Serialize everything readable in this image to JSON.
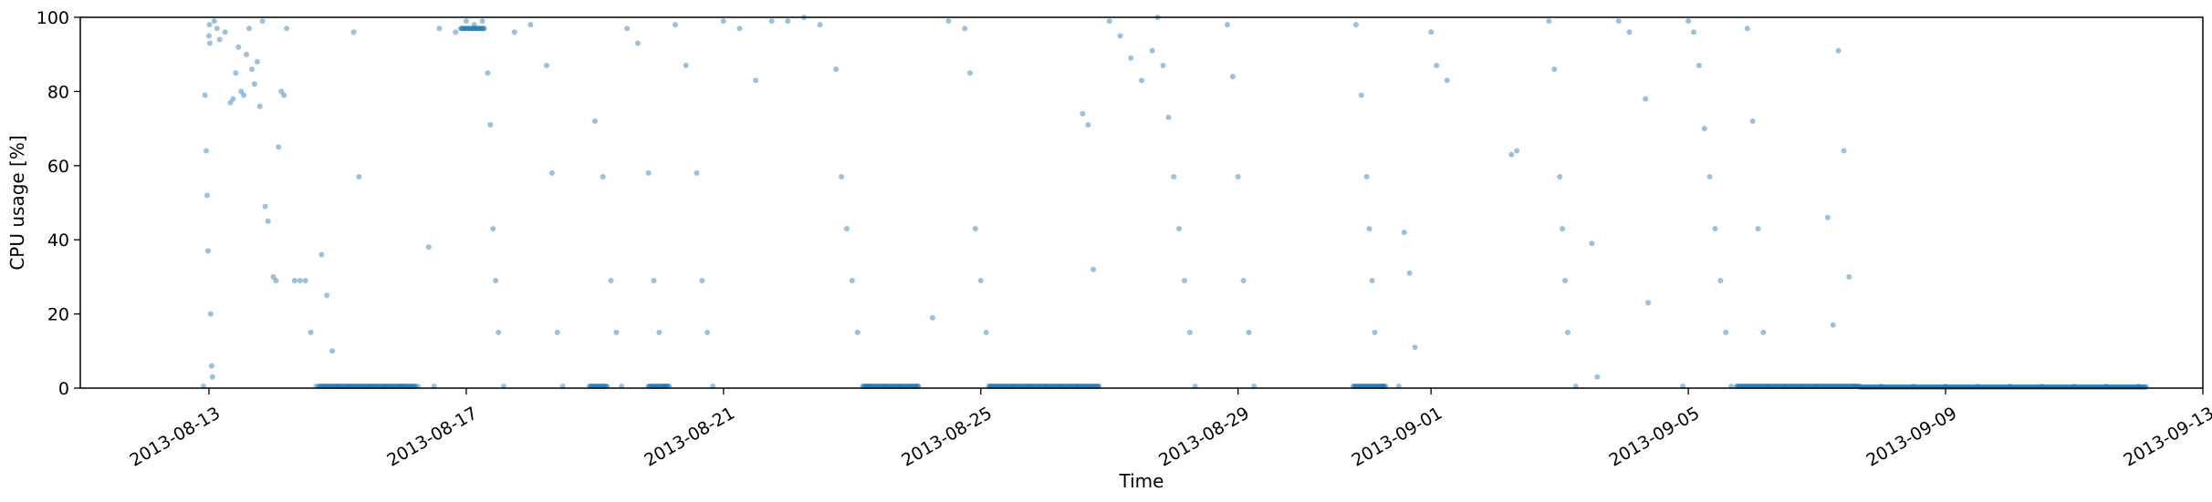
{
  "chart_data": {
    "type": "scatter",
    "title": "",
    "xlabel": "Time",
    "ylabel": "CPU usage [%]",
    "xlim": [
      "2013-08-11T00:00",
      "2013-09-13T00:00"
    ],
    "ylim": [
      0,
      100
    ],
    "grid": false,
    "legend": "none",
    "x_tick_labels": [
      "2013-08-13",
      "2013-08-17",
      "2013-08-21",
      "2013-08-25",
      "2013-08-29",
      "2013-09-01",
      "2013-09-05",
      "2013-09-09",
      "2013-09-13"
    ],
    "y_tick_labels": [
      "0",
      "20",
      "40",
      "60",
      "80",
      "100"
    ],
    "colors": {
      "point": "#1f77b4",
      "axes": "#000000"
    },
    "series": [
      {
        "columns": [
          "time",
          "cpu_percent"
        ],
        "points": [
          [
            "2013-08-12T22:00",
            0.5
          ],
          [
            "2013-08-12T22:30",
            79
          ],
          [
            "2013-08-12T23:00",
            64
          ],
          [
            "2013-08-12T23:20",
            52
          ],
          [
            "2013-08-12T23:40",
            37
          ],
          [
            "2013-08-13T00:00",
            95
          ],
          [
            "2013-08-13T00:10",
            98
          ],
          [
            "2013-08-13T00:20",
            93
          ],
          [
            "2013-08-13T00:40",
            20
          ],
          [
            "2013-08-13T01:00",
            6
          ],
          [
            "2013-08-13T01:20",
            3
          ],
          [
            "2013-08-13T02:00",
            99
          ],
          [
            "2013-08-13T03:00",
            97
          ],
          [
            "2013-08-13T04:00",
            94
          ],
          [
            "2013-08-13T06:00",
            96
          ],
          [
            "2013-08-13T08:00",
            77
          ],
          [
            "2013-08-13T09:00",
            78
          ],
          [
            "2013-08-13T10:00",
            85
          ],
          [
            "2013-08-13T11:00",
            92
          ],
          [
            "2013-08-13T12:00",
            80
          ],
          [
            "2013-08-13T13:00",
            79
          ],
          [
            "2013-08-13T14:00",
            90
          ],
          [
            "2013-08-13T15:00",
            97
          ],
          [
            "2013-08-13T16:00",
            86
          ],
          [
            "2013-08-13T17:00",
            82
          ],
          [
            "2013-08-13T18:00",
            88
          ],
          [
            "2013-08-13T19:00",
            76
          ],
          [
            "2013-08-13T20:00",
            99
          ],
          [
            "2013-08-13T21:00",
            49
          ],
          [
            "2013-08-13T22:00",
            45
          ],
          [
            "2013-08-14T00:00",
            30
          ],
          [
            "2013-08-14T01:00",
            29
          ],
          [
            "2013-08-14T02:00",
            65
          ],
          [
            "2013-08-14T03:00",
            80
          ],
          [
            "2013-08-14T04:00",
            79
          ],
          [
            "2013-08-14T05:00",
            97
          ],
          [
            "2013-08-14T08:00",
            29
          ],
          [
            "2013-08-14T10:00",
            29
          ],
          [
            "2013-08-14T12:00",
            29
          ],
          [
            "2013-08-14T14:00",
            15
          ],
          [
            "2013-08-14T16:00",
            0.5
          ],
          [
            "2013-08-14T18:00",
            36
          ],
          [
            "2013-08-14T20:00",
            25
          ],
          [
            "2013-08-14T22:00",
            10
          ],
          [
            "2013-08-15T00:00",
            0.5
          ],
          [
            "2013-08-15T04:00",
            0.5
          ],
          [
            "2013-08-15T06:00",
            96
          ],
          [
            "2013-08-15T08:00",
            57
          ],
          [
            "2013-08-15T12:00",
            0.5
          ],
          [
            "2013-08-15T18:00",
            0.5
          ],
          [
            "2013-08-16T00:00",
            0.5
          ],
          [
            "2013-08-16T06:00",
            0.5
          ],
          [
            "2013-08-16T10:00",
            38
          ],
          [
            "2013-08-16T12:00",
            0.5
          ],
          [
            "2013-08-16T14:00",
            97
          ],
          [
            "2013-08-16T20:00",
            96
          ],
          [
            "2013-08-17T00:00",
            99
          ],
          [
            "2013-08-17T03:00",
            98
          ],
          [
            "2013-08-17T06:00",
            99
          ],
          [
            "2013-08-17T08:00",
            85
          ],
          [
            "2013-08-17T09:00",
            71
          ],
          [
            "2013-08-17T10:00",
            43
          ],
          [
            "2013-08-17T11:00",
            29
          ],
          [
            "2013-08-17T12:00",
            15
          ],
          [
            "2013-08-17T14:00",
            0.5
          ],
          [
            "2013-08-17T18:00",
            96
          ],
          [
            "2013-08-18T00:00",
            98
          ],
          [
            "2013-08-18T06:00",
            87
          ],
          [
            "2013-08-18T08:00",
            58
          ],
          [
            "2013-08-18T10:00",
            15
          ],
          [
            "2013-08-18T12:00",
            0.5
          ],
          [
            "2013-08-19T00:00",
            72
          ],
          [
            "2013-08-19T03:00",
            57
          ],
          [
            "2013-08-19T06:00",
            29
          ],
          [
            "2013-08-19T08:00",
            15
          ],
          [
            "2013-08-19T10:00",
            0.5
          ],
          [
            "2013-08-19T12:00",
            97
          ],
          [
            "2013-08-19T16:00",
            93
          ],
          [
            "2013-08-19T20:00",
            58
          ],
          [
            "2013-08-19T22:00",
            29
          ],
          [
            "2013-08-20T00:00",
            15
          ],
          [
            "2013-08-20T02:00",
            0.5
          ],
          [
            "2013-08-20T06:00",
            98
          ],
          [
            "2013-08-20T10:00",
            87
          ],
          [
            "2013-08-20T14:00",
            58
          ],
          [
            "2013-08-20T16:00",
            29
          ],
          [
            "2013-08-20T18:00",
            15
          ],
          [
            "2013-08-20T20:00",
            0.5
          ],
          [
            "2013-08-21T00:00",
            99
          ],
          [
            "2013-08-21T06:00",
            97
          ],
          [
            "2013-08-21T12:00",
            83
          ],
          [
            "2013-08-21T18:00",
            99
          ],
          [
            "2013-08-22T00:00",
            99
          ],
          [
            "2013-08-22T06:00",
            100
          ],
          [
            "2013-08-22T12:00",
            98
          ],
          [
            "2013-08-22T18:00",
            86
          ],
          [
            "2013-08-22T20:00",
            57
          ],
          [
            "2013-08-22T22:00",
            43
          ],
          [
            "2013-08-23T00:00",
            29
          ],
          [
            "2013-08-23T02:00",
            15
          ],
          [
            "2013-08-23T06:00",
            0.5
          ],
          [
            "2013-08-23T12:00",
            0.5
          ],
          [
            "2013-08-23T18:00",
            0.5
          ],
          [
            "2013-08-24T00:00",
            0.5
          ],
          [
            "2013-08-24T06:00",
            19
          ],
          [
            "2013-08-24T12:00",
            99
          ],
          [
            "2013-08-24T18:00",
            97
          ],
          [
            "2013-08-24T20:00",
            85
          ],
          [
            "2013-08-24T22:00",
            43
          ],
          [
            "2013-08-25T00:00",
            29
          ],
          [
            "2013-08-25T02:00",
            15
          ],
          [
            "2013-08-25T04:00",
            0.5
          ],
          [
            "2013-08-25T12:00",
            0.5
          ],
          [
            "2013-08-25T18:00",
            0.5
          ],
          [
            "2013-08-26T00:00",
            0.5
          ],
          [
            "2013-08-26T06:00",
            0.5
          ],
          [
            "2013-08-26T12:00",
            0.5
          ],
          [
            "2013-08-26T14:00",
            74
          ],
          [
            "2013-08-26T16:00",
            71
          ],
          [
            "2013-08-26T18:00",
            32
          ],
          [
            "2013-08-26T20:00",
            0.5
          ],
          [
            "2013-08-27T00:00",
            99
          ],
          [
            "2013-08-27T04:00",
            95
          ],
          [
            "2013-08-27T08:00",
            89
          ],
          [
            "2013-08-27T12:00",
            83
          ],
          [
            "2013-08-27T16:00",
            91
          ],
          [
            "2013-08-27T18:00",
            100
          ],
          [
            "2013-08-27T20:00",
            87
          ],
          [
            "2013-08-27T22:00",
            73
          ],
          [
            "2013-08-28T00:00",
            57
          ],
          [
            "2013-08-28T02:00",
            43
          ],
          [
            "2013-08-28T04:00",
            29
          ],
          [
            "2013-08-28T06:00",
            15
          ],
          [
            "2013-08-28T08:00",
            0.5
          ],
          [
            "2013-08-28T20:00",
            98
          ],
          [
            "2013-08-28T22:00",
            84
          ],
          [
            "2013-08-29T00:00",
            57
          ],
          [
            "2013-08-29T02:00",
            29
          ],
          [
            "2013-08-29T04:00",
            15
          ],
          [
            "2013-08-29T06:00",
            0.5
          ],
          [
            "2013-08-30T20:00",
            98
          ],
          [
            "2013-08-30T22:00",
            79
          ],
          [
            "2013-08-31T00:00",
            57
          ],
          [
            "2013-08-31T01:00",
            43
          ],
          [
            "2013-08-31T02:00",
            29
          ],
          [
            "2013-08-31T03:00",
            15
          ],
          [
            "2013-08-31T06:00",
            0.5
          ],
          [
            "2013-08-31T12:00",
            0.5
          ],
          [
            "2013-08-31T14:00",
            42
          ],
          [
            "2013-08-31T16:00",
            31
          ],
          [
            "2013-08-31T18:00",
            11
          ],
          [
            "2013-09-01T00:00",
            96
          ],
          [
            "2013-09-01T02:00",
            87
          ],
          [
            "2013-09-01T06:00",
            83
          ],
          [
            "2013-09-02T06:00",
            63
          ],
          [
            "2013-09-02T08:00",
            64
          ],
          [
            "2013-09-02T20:00",
            99
          ],
          [
            "2013-09-02T22:00",
            86
          ],
          [
            "2013-09-03T00:00",
            57
          ],
          [
            "2013-09-03T01:00",
            43
          ],
          [
            "2013-09-03T02:00",
            29
          ],
          [
            "2013-09-03T03:00",
            15
          ],
          [
            "2013-09-03T06:00",
            0.5
          ],
          [
            "2013-09-03T12:00",
            39
          ],
          [
            "2013-09-03T14:00",
            3
          ],
          [
            "2013-09-03T22:00",
            99
          ],
          [
            "2013-09-04T02:00",
            96
          ],
          [
            "2013-09-04T08:00",
            78
          ],
          [
            "2013-09-04T09:00",
            23
          ],
          [
            "2013-09-04T22:00",
            0.5
          ],
          [
            "2013-09-05T00:00",
            99
          ],
          [
            "2013-09-05T02:00",
            96
          ],
          [
            "2013-09-05T04:00",
            87
          ],
          [
            "2013-09-05T06:00",
            70
          ],
          [
            "2013-09-05T08:00",
            57
          ],
          [
            "2013-09-05T10:00",
            43
          ],
          [
            "2013-09-05T12:00",
            29
          ],
          [
            "2013-09-05T14:00",
            15
          ],
          [
            "2013-09-05T16:00",
            0.5
          ],
          [
            "2013-09-05T22:00",
            97
          ],
          [
            "2013-09-06T00:00",
            72
          ],
          [
            "2013-09-06T02:00",
            43
          ],
          [
            "2013-09-06T04:00",
            15
          ],
          [
            "2013-09-06T06:00",
            0.5
          ],
          [
            "2013-09-06T12:00",
            0.5
          ],
          [
            "2013-09-06T18:00",
            0.5
          ],
          [
            "2013-09-07T00:00",
            0.5
          ],
          [
            "2013-09-07T04:00",
            46
          ],
          [
            "2013-09-07T06:00",
            17
          ],
          [
            "2013-09-07T08:00",
            91
          ],
          [
            "2013-09-07T10:00",
            64
          ],
          [
            "2013-09-07T12:00",
            30
          ],
          [
            "2013-09-07T14:00",
            0.5
          ],
          [
            "2013-09-08T00:00",
            0.5
          ],
          [
            "2013-09-08T12:00",
            0.5
          ],
          [
            "2013-09-09T00:00",
            0.5
          ],
          [
            "2013-09-09T12:00",
            0.5
          ],
          [
            "2013-09-10T00:00",
            0.5
          ],
          [
            "2013-09-10T12:00",
            0.5
          ],
          [
            "2013-09-11T00:00",
            0.5
          ],
          [
            "2013-09-11T12:00",
            0.5
          ],
          [
            "2013-09-12T00:00",
            0.5
          ]
        ],
        "dense_runs": [
          [
            "2013-08-14T17:00",
            "2013-08-16T05:00",
            0.5
          ],
          [
            "2013-08-16T22:00",
            "2013-08-17T07:00",
            97
          ],
          [
            "2013-08-18T22:00",
            "2013-08-19T05:00",
            0.5
          ],
          [
            "2013-08-19T20:00",
            "2013-08-20T04:00",
            0.5
          ],
          [
            "2013-08-23T04:00",
            "2013-08-24T01:00",
            0.5
          ],
          [
            "2013-08-25T03:00",
            "2013-08-26T20:00",
            0.5
          ],
          [
            "2013-08-30T19:00",
            "2013-08-31T07:00",
            0.5
          ],
          [
            "2013-09-05T18:00",
            "2013-09-07T16:00",
            0.5
          ],
          [
            "2013-09-07T16:00",
            "2013-09-12T03:00",
            0.3
          ]
        ]
      }
    ]
  }
}
